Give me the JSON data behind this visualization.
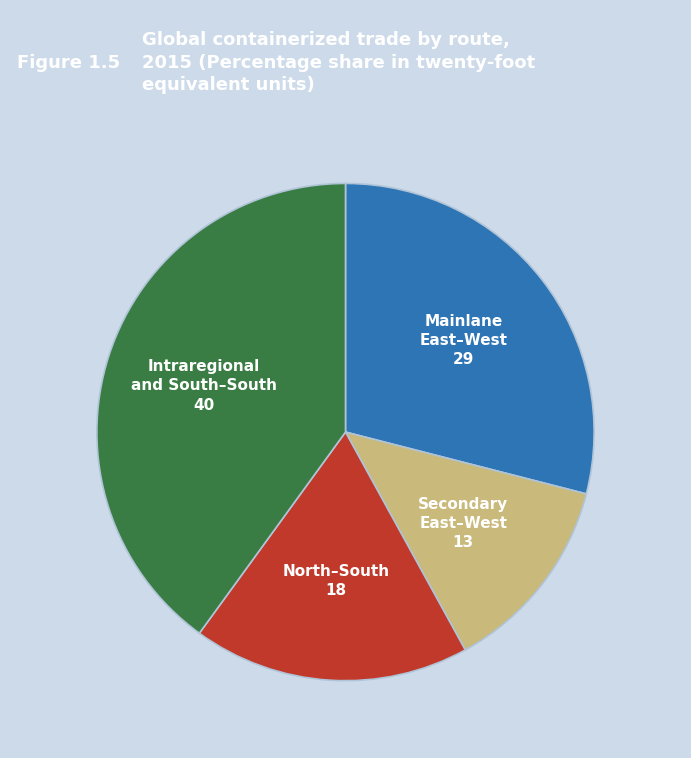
{
  "title_label": "Figure 1.5",
  "title_text": "Global containerized trade by route,\n2015 (Percentage share in twenty-foot\nequivalent units)",
  "title_bg_color": "#2e75b6",
  "title_text_color": "#ffffff",
  "chart_bg_color": "#cddaea",
  "slices": [
    {
      "label": "Mainlane\nEast–West\n29",
      "value": 29,
      "color": "#2e75b6",
      "text_color": "#ffffff"
    },
    {
      "label": "Secondary\nEast–West\n13",
      "value": 13,
      "color": "#c9b97a",
      "text_color": "#ffffff"
    },
    {
      "label": "North–South\n18",
      "value": 18,
      "color": "#c0392b",
      "text_color": "#ffffff"
    },
    {
      "label": "Intraregional\nand South–South\n40",
      "value": 40,
      "color": "#3a7d44",
      "text_color": "#ffffff"
    }
  ],
  "startangle": 90,
  "pie_edge_color": "#b0c4d8",
  "pie_edge_linewidth": 1.2,
  "label_r": 0.6,
  "title_label_fontsize": 13,
  "title_text_fontsize": 13,
  "pie_label_fontsize": 11
}
